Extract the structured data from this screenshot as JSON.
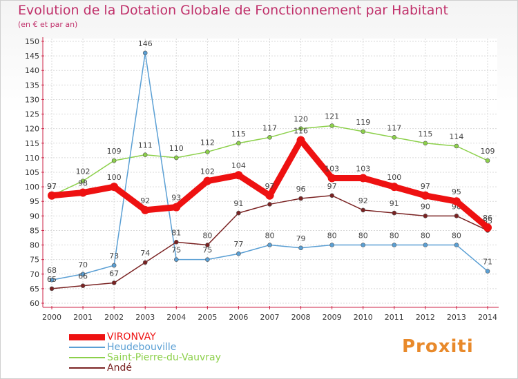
{
  "header": {
    "title": "Evolution de la Dotation Globale de Fonctionnement par Habitant",
    "subtitle": "(en € et par an)"
  },
  "brand": {
    "logo_text": "Proxiti"
  },
  "chart_data": {
    "type": "line",
    "title": "Evolution de la Dotation Globale de Fonctionnement par Habitant",
    "subtitle": "(en € et par an)",
    "xlabel": "",
    "ylabel": "",
    "ylim": [
      60,
      150
    ],
    "ytick_step": 5,
    "grid": true,
    "legend_position": "bottom-left",
    "x": [
      "2000",
      "2001",
      "2002",
      "2003",
      "2004",
      "2005",
      "2006",
      "2007",
      "2008",
      "2009",
      "2010",
      "2011",
      "2012",
      "2013",
      "2014"
    ],
    "series": [
      {
        "name": "Saint-Pierre-du-Vauvray",
        "color": "#8cd04a",
        "values": [
          97,
          102,
          109,
          111,
          110,
          112,
          115,
          117,
          120,
          121,
          119,
          117,
          115,
          114,
          109
        ]
      },
      {
        "name": "Heudebouville",
        "color": "#5a9fd4",
        "values": [
          68,
          70,
          73,
          146,
          75,
          75,
          77,
          80,
          79,
          80,
          80,
          80,
          80,
          80,
          71
        ]
      },
      {
        "name": "Andé",
        "color": "#7a2222",
        "values": [
          65,
          66,
          67,
          74,
          81,
          80,
          91,
          94,
          96,
          97,
          92,
          91,
          90,
          90,
          85
        ]
      },
      {
        "name": "VIRONVAY",
        "color": "#ee1111",
        "values": [
          97,
          98,
          100,
          92,
          93,
          102,
          104,
          97,
          116,
          103,
          103,
          100,
          97,
          95,
          86
        ]
      }
    ],
    "legend": [
      "VIRONVAY",
      "Heudebouville",
      "Saint-Pierre-du-Vauvray",
      "Andé"
    ]
  }
}
